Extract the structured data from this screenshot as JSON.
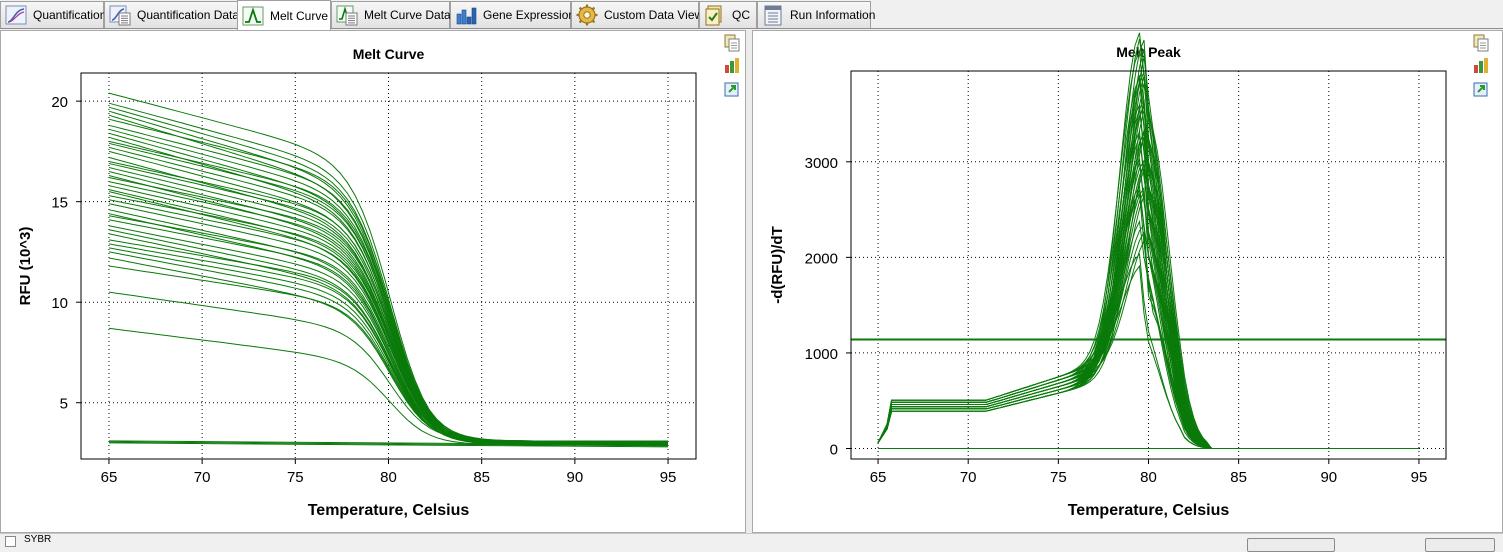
{
  "tabs": [
    {
      "label": "Quantification",
      "icon": "quantification-icon",
      "active": false
    },
    {
      "label": "Quantification Data",
      "icon": "quantification-data-icon",
      "active": false
    },
    {
      "label": "Melt Curve",
      "icon": "melt-curve-icon",
      "active": true
    },
    {
      "label": "Melt Curve Data",
      "icon": "melt-curve-data-icon",
      "active": false
    },
    {
      "label": "Gene Expression",
      "icon": "gene-expression-icon",
      "active": false
    },
    {
      "label": "Custom Data View",
      "icon": "custom-data-view-icon",
      "active": false
    },
    {
      "label": "QC",
      "icon": "qc-icon",
      "active": false
    },
    {
      "label": "Run Information",
      "icon": "run-information-icon",
      "active": false
    }
  ],
  "side_tools": [
    "copy-icon",
    "chart-options-icon",
    "export-icon"
  ],
  "status": {
    "label": "SYBR"
  },
  "colors": {
    "series": "#0a7a0a",
    "threshold": "#0a7a0a",
    "grid": "#000000",
    "tab_border": "#a0a0a0"
  },
  "chart_data": [
    {
      "type": "line",
      "title": "Melt Curve",
      "xlabel": "Temperature, Celsius",
      "ylabel": "RFU (10^3)",
      "xlim": [
        63.5,
        96.5
      ],
      "ylim": [
        2.2,
        21.4
      ],
      "xticks": [
        65,
        70,
        75,
        80,
        85,
        90,
        95
      ],
      "yticks": [
        5,
        10,
        15,
        20
      ],
      "grid": true,
      "note_series": "approx. 60 sigmoid melt traces; start values at 65°C, common plateau ~3.0 at 83–95°C, plus a flat baseline group near 3.0",
      "series_start_values": [
        20.4,
        19.9,
        19.7,
        19.5,
        19.3,
        19.1,
        18.8,
        18.6,
        18.4,
        18.2,
        18.0,
        17.9,
        17.7,
        17.5,
        17.2,
        17.0,
        16.9,
        16.7,
        16.5,
        16.3,
        16.2,
        16.0,
        15.8,
        15.6,
        15.5,
        15.3,
        15.1,
        14.9,
        14.6,
        14.4,
        14.3,
        14.1,
        13.8,
        13.6,
        13.4,
        13.1,
        12.9,
        12.7,
        12.5,
        12.2,
        11.8,
        10.5,
        8.7
      ],
      "plateau_value": 3.0,
      "baseline_values": [
        3.1,
        3.05,
        3.0
      ]
    },
    {
      "type": "line",
      "title": "Melt Peak",
      "xlabel": "Temperature, Celsius",
      "ylabel": "-d(RFU)/dT",
      "xlim": [
        63.5,
        96.5
      ],
      "ylim": [
        -110,
        3950
      ],
      "xticks": [
        65,
        70,
        75,
        80,
        85,
        90,
        95
      ],
      "yticks": [
        0,
        1000,
        2000,
        3000
      ],
      "grid": true,
      "threshold": 1140,
      "series_peak_values": [
        3760,
        3700,
        3600,
        3500,
        3450,
        3400,
        3350,
        3300,
        3250,
        3200,
        3150,
        3100,
        3050,
        3000,
        2950,
        2900,
        2850,
        2800,
        2750,
        2700,
        2650,
        2600,
        2550,
        2500,
        2450,
        2400,
        2350,
        2300,
        2250,
        2200,
        2150,
        2100,
        2050,
        2000,
        1950,
        1900,
        1800,
        1700,
        1600,
        1500,
        1300,
        1150
      ],
      "peak_temperature": 79.8,
      "shoulder_value": 230,
      "baseline_values": [
        0
      ]
    }
  ]
}
